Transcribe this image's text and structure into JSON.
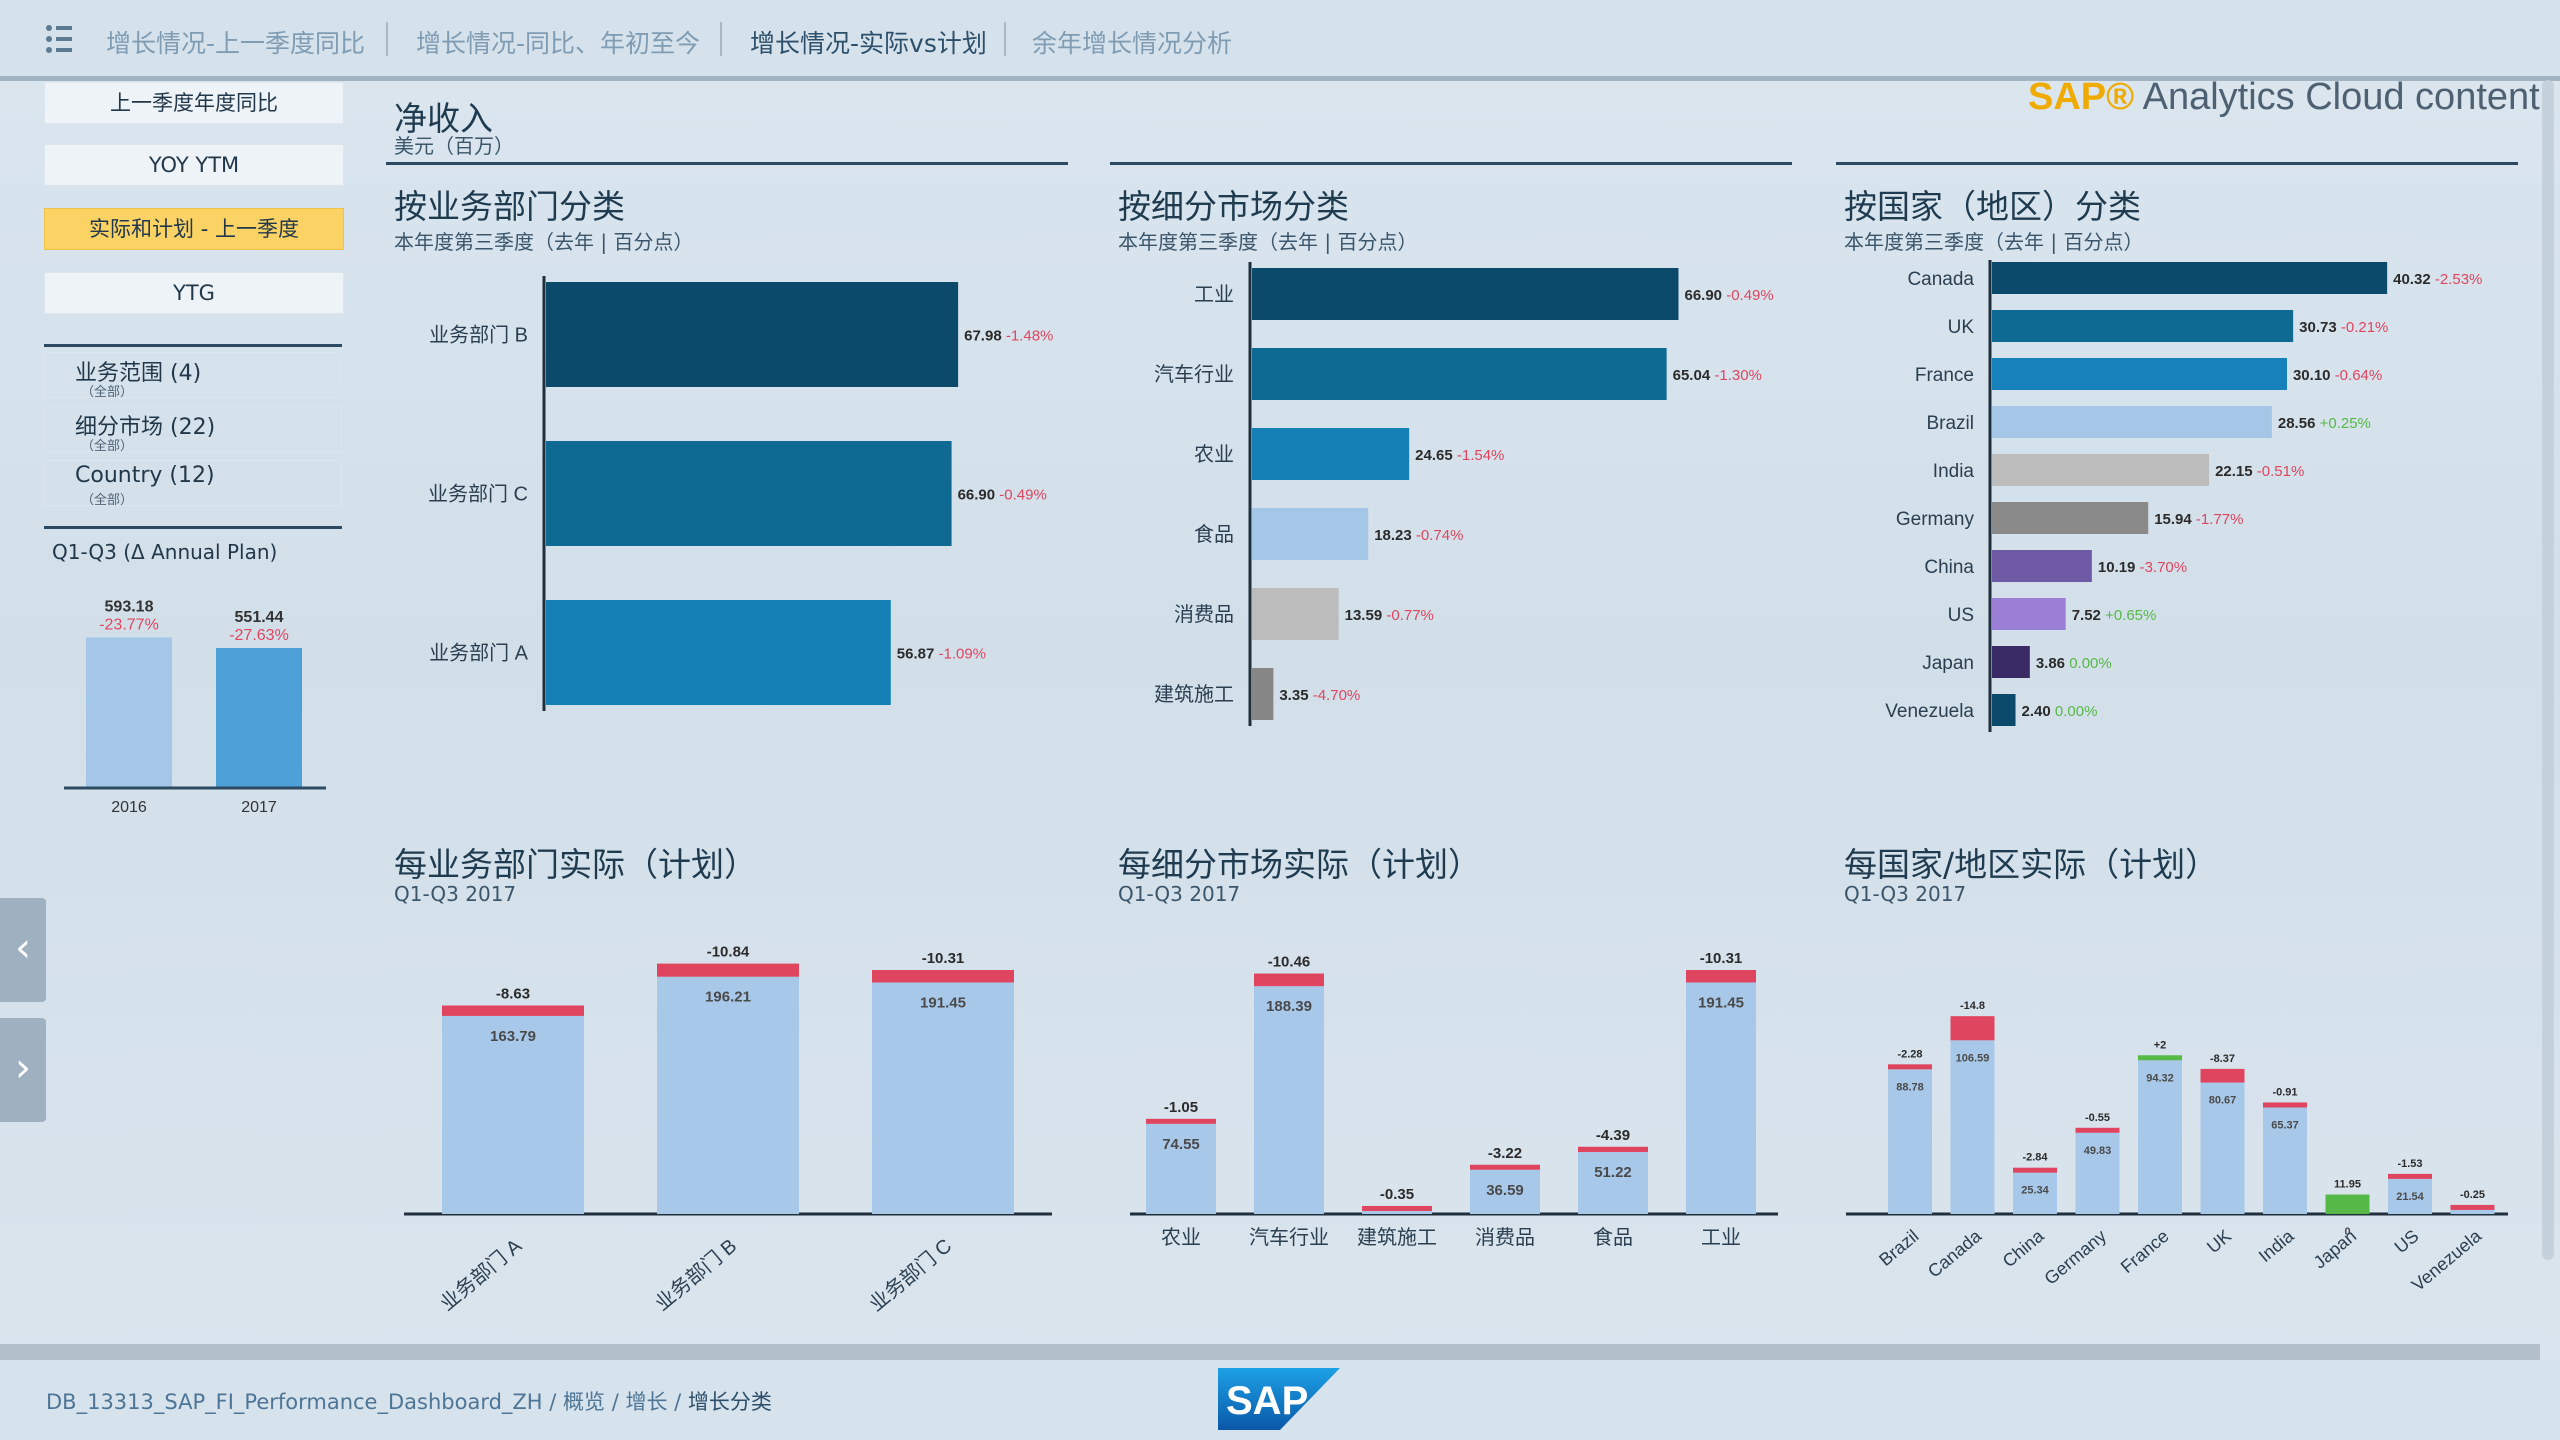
{
  "nav": {
    "tabs": [
      {
        "label": "增长情况-上一季度同比",
        "active": false
      },
      {
        "label": "增长情况-同比、年初至今",
        "active": false
      },
      {
        "label": "增长情况-实际vs计划",
        "active": true
      },
      {
        "label": "余年增长情况分析",
        "active": false
      }
    ]
  },
  "brand": {
    "sap": "SAP®",
    "text": " Analytics Cloud content"
  },
  "sidebar": {
    "buttons": [
      {
        "label": "上一季度年度同比",
        "active": false
      },
      {
        "label": "YOY YTM",
        "active": false
      },
      {
        "label": "实际和计划 - 上一季度",
        "active": true
      },
      {
        "label": "YTG",
        "active": false
      }
    ],
    "filters": [
      {
        "label": "业务范围 (4)",
        "sub": "（全部）"
      },
      {
        "label": "细分市场 (22)",
        "sub": "（全部）"
      },
      {
        "label": "Country (12)",
        "sub": "（全部）"
      }
    ],
    "mini_title": "Q1-Q3 (Δ Annual Plan)"
  },
  "header": {
    "title": "净收入",
    "unit": "美元（百万）"
  },
  "colors": {
    "navy": "#0b4a6a",
    "teal": "#0f6a93",
    "blue": "#1480b5",
    "light": "#a4c7e8",
    "gray": "#bcbcbc",
    "dgray": "#868686",
    "purple1": "#6f5aa5",
    "purple2": "#9b7fd6",
    "dpurple": "#3a2a66",
    "neg": "#e0455f",
    "pos": "#56b847",
    "bar": "#a8c8ea"
  },
  "chart_data": [
    {
      "id": "mini",
      "type": "bar",
      "title": "Q1-Q3 (Δ Annual Plan)",
      "categories": [
        "2016",
        "2017"
      ],
      "values": [
        593.18,
        551.44
      ],
      "deltas": [
        "-23.77%",
        "-27.63%"
      ]
    },
    {
      "id": "business",
      "type": "bar",
      "orientation": "horizontal",
      "title": "按业务部门分类",
      "subtitle": "本年度第三季度（去年 | 百分点）",
      "categories": [
        "业务部门 B",
        "业务部门 C",
        "业务部门 A"
      ],
      "values": [
        67.98,
        66.9,
        56.87
      ],
      "deltas": [
        "-1.48%",
        "-0.49%",
        "-1.09%"
      ],
      "xlim": [
        0,
        80
      ]
    },
    {
      "id": "market",
      "type": "bar",
      "orientation": "horizontal",
      "title": "按细分市场分类",
      "subtitle": "本年度第三季度（去年 | 百分点）",
      "categories": [
        "工业",
        "汽车行业",
        "农业",
        "食品",
        "消费品",
        "建筑施工"
      ],
      "values": [
        66.9,
        65.04,
        24.65,
        18.23,
        13.59,
        3.35
      ],
      "deltas": [
        "-0.49%",
        "-1.30%",
        "-1.54%",
        "-0.74%",
        "-0.77%",
        "-4.70%"
      ],
      "xlim": [
        0,
        80
      ]
    },
    {
      "id": "country",
      "type": "bar",
      "orientation": "horizontal",
      "title": "按国家（地区）分类",
      "subtitle": "本年度第三季度（去年 | 百分点）",
      "categories": [
        "Canada",
        "UK",
        "France",
        "Brazil",
        "India",
        "Germany",
        "China",
        "US",
        "Japan",
        "Venezuela"
      ],
      "values": [
        40.32,
        30.73,
        30.1,
        28.56,
        22.15,
        15.94,
        10.19,
        7.52,
        3.86,
        2.4
      ],
      "deltas": [
        "-2.53%",
        "-0.21%",
        "-0.64%",
        "+0.25%",
        "-0.51%",
        "-1.77%",
        "-3.70%",
        "+0.65%",
        "0.00%",
        "0.00%"
      ],
      "xlim": [
        0,
        50
      ]
    },
    {
      "id": "bu_plan",
      "type": "bar",
      "title": "每业务部门实际（计划）",
      "subtitle": "Q1-Q3 2017",
      "categories": [
        "业务部门 A",
        "业务部门 B",
        "业务部门 C"
      ],
      "values": [
        163.79,
        196.21,
        191.45
      ],
      "deltas": [
        -8.63,
        -10.84,
        -10.31
      ],
      "ylim": [
        0,
        215
      ]
    },
    {
      "id": "mk_plan",
      "type": "bar",
      "title": "每细分市场实际（计划）",
      "subtitle": "Q1-Q3 2017",
      "categories": [
        "农业",
        "汽车行业",
        "建筑施工",
        "消费品",
        "食品",
        "工业"
      ],
      "values": [
        74.55,
        188.39,
        null,
        36.59,
        51.22,
        191.45
      ],
      "deltas": [
        -1.05,
        -10.46,
        -0.35,
        -3.22,
        -4.39,
        -10.31
      ],
      "ylim": [
        0,
        215
      ]
    },
    {
      "id": "ct_plan",
      "type": "bar",
      "title": "每国家/地区实际（计划）",
      "subtitle": "Q1-Q3 2017",
      "categories": [
        "Brazil",
        "Canada",
        "China",
        "Germany",
        "France",
        "UK",
        "India",
        "Japan",
        "US",
        "Venezuela"
      ],
      "values": [
        88.78,
        106.59,
        25.34,
        49.83,
        94.32,
        80.67,
        65.37,
        0,
        21.54,
        null
      ],
      "deltas": [
        -2.28,
        -14.8,
        -2.84,
        -0.55,
        2,
        -8.37,
        -0.91,
        11.95,
        -1.53,
        -0.25
      ],
      "delta_labels": [
        "-2.28",
        "-14.8",
        "-2.84",
        "-0.55",
        "+2",
        "-8.37",
        "-0.91",
        "11.95",
        "-1.53",
        "-0.25"
      ],
      "ylim": [
        0,
        135
      ]
    }
  ],
  "footer": {
    "crumbs": [
      "DB_13313_SAP_FI_Performance_Dashboard_ZH",
      "概览",
      "增长"
    ],
    "current": "增长分类"
  }
}
